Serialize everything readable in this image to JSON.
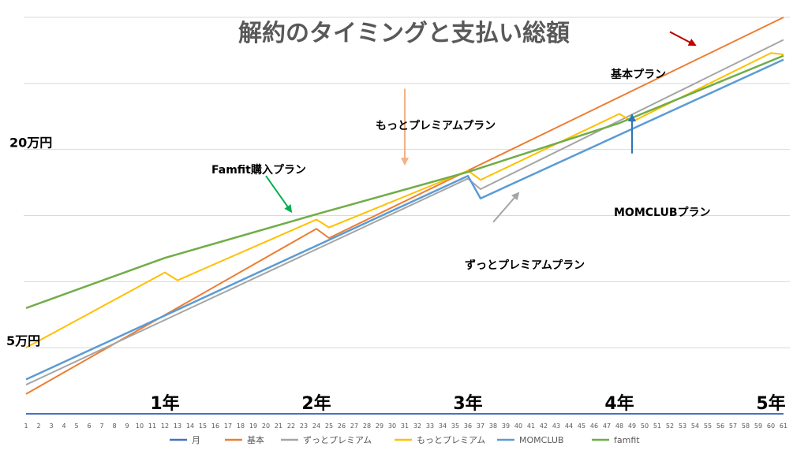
{
  "chart_data": {
    "type": "line",
    "title": "解約のタイミングと支払い総額",
    "x": [
      1,
      2,
      3,
      4,
      5,
      6,
      7,
      8,
      9,
      10,
      11,
      12,
      13,
      14,
      15,
      16,
      17,
      18,
      19,
      20,
      21,
      22,
      23,
      24,
      25,
      26,
      27,
      28,
      29,
      30,
      31,
      32,
      33,
      34,
      35,
      36,
      37,
      38,
      39,
      40,
      41,
      42,
      43,
      44,
      45,
      46,
      47,
      48,
      49,
      50,
      51,
      52,
      53,
      54,
      55,
      56,
      57,
      58,
      59,
      60,
      61
    ],
    "x_tick_labels": [
      "1",
      "2",
      "3",
      "4",
      "5",
      "6",
      "7",
      "8",
      "9",
      "10",
      "11",
      "12",
      "13",
      "14",
      "15",
      "16",
      "17",
      "18",
      "19",
      "20",
      "21",
      "22",
      "23",
      "24",
      "25",
      "26",
      "27",
      "28",
      "29",
      "30",
      "31",
      "32",
      "33",
      "34",
      "35",
      "36",
      "37",
      "38",
      "39",
      "40",
      "41",
      "42",
      "43",
      "44",
      "45",
      "46",
      "47",
      "48",
      "49",
      "50",
      "51",
      "52",
      "53",
      "54",
      "55",
      "56",
      "57",
      "58",
      "59",
      "60",
      "61"
    ],
    "ylim": [
      0,
      300000
    ],
    "grid": true,
    "legend_position": "bottom",
    "y_labels": [
      {
        "text": "20万円",
        "value": 200000
      },
      {
        "text": "5万円",
        "value": 50000
      }
    ],
    "year_labels": [
      {
        "text": "1年",
        "x": 12
      },
      {
        "text": "2年",
        "x": 24
      },
      {
        "text": "3年",
        "x": 36
      },
      {
        "text": "4年",
        "x": 48
      },
      {
        "text": "5年",
        "x": 60
      }
    ],
    "series": [
      {
        "name": "月",
        "color": "#4472c4",
        "width": 2,
        "points": [
          [
            1,
            0
          ],
          [
            61,
            0
          ]
        ]
      },
      {
        "name": "基本",
        "color": "#ed7d31",
        "width": 2,
        "points": [
          [
            1,
            15000
          ],
          [
            24,
            140000
          ],
          [
            25,
            133000
          ],
          [
            61,
            300000
          ]
        ]
      },
      {
        "name": "ずっとプレミアム",
        "color": "#a5a5a5",
        "width": 2,
        "points": [
          [
            1,
            22000
          ],
          [
            36,
            178000
          ],
          [
            37,
            170000
          ],
          [
            61,
            283000
          ]
        ]
      },
      {
        "name": "もっとプレミアム",
        "color": "#ffc000",
        "width": 2,
        "points": [
          [
            1,
            50000
          ],
          [
            12,
            107000
          ],
          [
            13,
            101000
          ],
          [
            24,
            147000
          ],
          [
            25,
            141000
          ],
          [
            36,
            184000
          ],
          [
            37,
            177000
          ],
          [
            48,
            227000
          ],
          [
            49,
            221000
          ],
          [
            60,
            273000
          ],
          [
            61,
            272000
          ]
        ]
      },
      {
        "name": "MOMCLUB",
        "color": "#5b9bd5",
        "width": 2.5,
        "points": [
          [
            1,
            26000
          ],
          [
            36,
            180000
          ],
          [
            37,
            163000
          ],
          [
            61,
            268000
          ]
        ]
      },
      {
        "name": "famfit",
        "color": "#70ad47",
        "width": 2.5,
        "points": [
          [
            1,
            80000
          ],
          [
            12,
            118000
          ],
          [
            24,
            151000
          ],
          [
            36,
            183000
          ],
          [
            48,
            220000
          ],
          [
            61,
            271000
          ]
        ]
      }
    ],
    "annotations": [
      {
        "text": "基本プラン",
        "color": "#c00000",
        "arrow_from": [
          52,
          289000
        ],
        "arrow_to": [
          54,
          279000
        ]
      },
      {
        "text": "もっとプレミアムプラン",
        "color": "#f4b183",
        "arrow_from": [
          31,
          246000
        ],
        "arrow_to": [
          31,
          189000
        ]
      },
      {
        "text": "Famfit購入プラン",
        "color": "#00b050",
        "arrow_from": [
          20,
          180000
        ],
        "arrow_to": [
          22,
          153000
        ]
      },
      {
        "text": "MOMCLUBプラン",
        "color": "#2e75b6",
        "arrow_from": [
          49,
          197000
        ],
        "arrow_to": [
          49,
          226000
        ]
      },
      {
        "text": "ずっとプレミアムプラン",
        "color": "#a5a5a5",
        "arrow_from": [
          38,
          145000
        ],
        "arrow_to": [
          40,
          167000
        ]
      }
    ]
  }
}
